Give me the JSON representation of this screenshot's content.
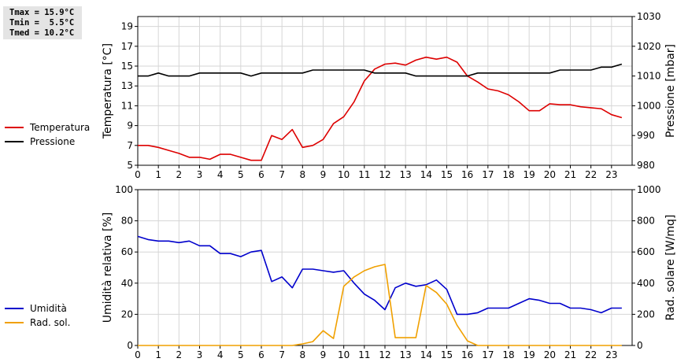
{
  "stats": [
    "Tmax = 15.9°C",
    "Tmin =  5.5°C",
    "Tmed = 10.2°C"
  ],
  "legend_top": [
    {
      "label": "Temperatura",
      "color": "#dd0000"
    },
    {
      "label": "Pressione",
      "color": "#000000"
    }
  ],
  "legend_bottom": [
    {
      "label": "Umidità",
      "color": "#0000cc"
    },
    {
      "label": "Rad. sol.",
      "color": "#f0a000"
    }
  ],
  "chart_data": [
    {
      "type": "line",
      "xlabel": "",
      "ylabel": "Temperatura [°C]",
      "ylabel_right": "Pressione [mbar]",
      "xlim": [
        0,
        24
      ],
      "xticks": [
        0,
        1,
        2,
        3,
        4,
        5,
        6,
        7,
        8,
        9,
        10,
        11,
        12,
        13,
        14,
        15,
        16,
        17,
        18,
        19,
        20,
        21,
        22,
        23
      ],
      "ylim": [
        5,
        20
      ],
      "yticks": [
        5,
        7,
        9,
        11,
        13,
        15,
        17,
        19
      ],
      "ylim_right": [
        980,
        1030
      ],
      "yticks_right": [
        980,
        990,
        1000,
        1010,
        1020,
        1030
      ],
      "grid": true,
      "series": [
        {
          "name": "Temperatura",
          "axis": "left",
          "color": "#dd0000",
          "x": [
            0,
            0.5,
            1,
            1.5,
            2,
            2.5,
            3,
            3.5,
            4,
            4.5,
            5,
            5.5,
            6,
            6.5,
            7,
            7.5,
            8,
            8.5,
            9,
            9.5,
            10,
            10.5,
            11,
            11.5,
            12,
            12.5,
            13,
            13.5,
            14,
            14.5,
            15,
            15.5,
            16,
            16.5,
            17,
            17.5,
            18,
            18.5,
            19,
            19.5,
            20,
            20.5,
            21,
            21.5,
            22,
            22.5,
            23,
            23.5
          ],
          "values": [
            7.0,
            7.0,
            6.8,
            6.5,
            6.2,
            5.8,
            5.8,
            5.6,
            6.1,
            6.1,
            5.8,
            5.5,
            5.5,
            8.0,
            7.6,
            8.6,
            6.8,
            7.0,
            7.6,
            9.2,
            9.9,
            11.4,
            13.5,
            14.7,
            15.2,
            15.3,
            15.1,
            15.6,
            15.9,
            15.7,
            15.9,
            15.4,
            14.0,
            13.4,
            12.7,
            12.5,
            12.1,
            11.4,
            10.5,
            10.5,
            11.2,
            11.1,
            11.1,
            10.9,
            10.8,
            10.7,
            10.1,
            9.8
          ]
        },
        {
          "name": "Pressione",
          "axis": "right",
          "color": "#000000",
          "x": [
            0,
            0.5,
            1,
            1.5,
            2,
            2.5,
            3,
            3.5,
            4,
            4.5,
            5,
            5.5,
            6,
            6.5,
            7,
            7.5,
            8,
            8.5,
            9,
            9.5,
            10,
            10.5,
            11,
            11.5,
            12,
            12.5,
            13,
            13.5,
            14,
            14.5,
            15,
            15.5,
            16,
            16.5,
            17,
            17.5,
            18,
            18.5,
            19,
            19.5,
            20,
            20.5,
            21,
            21.5,
            22,
            22.5,
            23,
            23.5
          ],
          "values": [
            1010,
            1010,
            1011,
            1010,
            1010,
            1010,
            1011,
            1011,
            1011,
            1011,
            1011,
            1010,
            1011,
            1011,
            1011,
            1011,
            1011,
            1012,
            1012,
            1012,
            1012,
            1012,
            1012,
            1011,
            1011,
            1011,
            1011,
            1010,
            1010,
            1010,
            1010,
            1010,
            1010,
            1011,
            1011,
            1011,
            1011,
            1011,
            1011,
            1011,
            1011,
            1012,
            1012,
            1012,
            1012,
            1013,
            1013,
            1014
          ]
        }
      ]
    },
    {
      "type": "line",
      "xlabel": "",
      "ylabel": "Umidità relativa [%]",
      "ylabel_right": "Rad. solare [W/mq]",
      "xlim": [
        0,
        24
      ],
      "xticks": [
        0,
        1,
        2,
        3,
        4,
        5,
        6,
        7,
        8,
        9,
        10,
        11,
        12,
        13,
        14,
        15,
        16,
        17,
        18,
        19,
        20,
        21,
        22,
        23
      ],
      "ylim": [
        0,
        100
      ],
      "yticks": [
        0,
        20,
        40,
        60,
        80,
        100
      ],
      "ylim_right": [
        0,
        1000
      ],
      "yticks_right": [
        0,
        200,
        400,
        600,
        800,
        1000
      ],
      "grid": true,
      "series": [
        {
          "name": "Umidità",
          "axis": "left",
          "color": "#0000cc",
          "x": [
            0,
            0.5,
            1,
            1.5,
            2,
            2.5,
            3,
            3.5,
            4,
            4.5,
            5,
            5.5,
            6,
            6.5,
            7,
            7.5,
            8,
            8.5,
            9,
            9.5,
            10,
            10.5,
            11,
            11.5,
            12,
            12.5,
            13,
            13.5,
            14,
            14.5,
            15,
            15.5,
            16,
            16.5,
            17,
            17.5,
            18,
            18.5,
            19,
            19.5,
            20,
            20.5,
            21,
            21.5,
            22,
            22.5,
            23,
            23.5
          ],
          "values": [
            70,
            68,
            67,
            67,
            66,
            67,
            64,
            64,
            59,
            59,
            57,
            60,
            61,
            41,
            44,
            37,
            49,
            49,
            48,
            47,
            48,
            40,
            33,
            29,
            23,
            37,
            40,
            38,
            39,
            42,
            36,
            20,
            20,
            21,
            24,
            24,
            24,
            27,
            30,
            29,
            27,
            27,
            24,
            24,
            23,
            21,
            24,
            24
          ]
        },
        {
          "name": "Rad. sol.",
          "axis": "right",
          "color": "#f0a000",
          "x": [
            0,
            0.5,
            1,
            1.5,
            2,
            2.5,
            3,
            3.5,
            4,
            4.5,
            5,
            5.5,
            6,
            6.5,
            7,
            7.5,
            8,
            8.5,
            9,
            9.5,
            10,
            10.5,
            11,
            11.5,
            12,
            12.5,
            13,
            13.5,
            14,
            14.5,
            15,
            15.5,
            16,
            16.5,
            17,
            17.5,
            18,
            18.5,
            19,
            19.5,
            20,
            20.5,
            21,
            21.5,
            22,
            22.5,
            23,
            23.5
          ],
          "values": [
            0,
            0,
            0,
            0,
            0,
            0,
            0,
            0,
            0,
            0,
            0,
            0,
            0,
            0,
            0,
            0,
            10,
            25,
            95,
            45,
            380,
            440,
            480,
            505,
            520,
            50,
            50,
            50,
            385,
            340,
            265,
            130,
            30,
            0,
            0,
            0,
            0,
            0,
            0,
            0,
            0,
            0,
            0,
            0,
            0,
            0,
            0,
            0
          ]
        }
      ]
    }
  ]
}
